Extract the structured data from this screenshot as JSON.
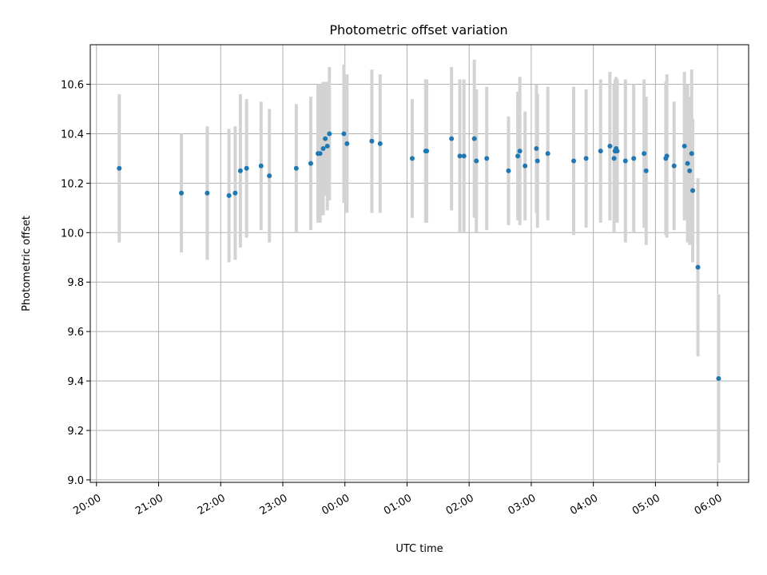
{
  "chart_data": {
    "type": "scatter",
    "title": "Photometric offset variation",
    "xlabel": "UTC time",
    "ylabel": "Photometric offset",
    "x_is_time": true,
    "xlim": [
      "20:00",
      "06:30"
    ],
    "xlim_hours": [
      -0.1,
      10.5
    ],
    "ylim": [
      8.99,
      10.76
    ],
    "grid": true,
    "colors": {
      "point": "#1f77b4",
      "errorbar": "#d3d3d3",
      "grid": "#b0b0b0"
    },
    "x_ticks": [
      "20:00",
      "21:00",
      "22:00",
      "23:00",
      "00:00",
      "01:00",
      "02:00",
      "03:00",
      "04:00",
      "05:00",
      "06:00"
    ],
    "y_ticks": [
      "9.0",
      "9.2",
      "9.4",
      "9.6",
      "9.8",
      "10.0",
      "10.2",
      "10.4",
      "10.6"
    ],
    "series": [
      {
        "x": [
          "20:22",
          "21:22",
          "21:47",
          "22:08",
          "22:14",
          "22:19",
          "22:25",
          "22:39",
          "22:47",
          "23:13",
          "23:27",
          "23:34",
          "23:36",
          "23:39",
          "23:41",
          "23:43",
          "23:45",
          "23:59",
          "24:02",
          "24:26",
          "24:34",
          "25:05",
          "25:18",
          "25:19",
          "25:43",
          "25:51",
          "25:55",
          "26:05",
          "26:07",
          "26:17",
          "26:38",
          "26:47",
          "26:49",
          "26:54",
          "27:05",
          "27:06",
          "27:16",
          "27:41",
          "27:53",
          "28:07",
          "28:16",
          "28:20",
          "28:21",
          "28:22",
          "28:23",
          "28:31",
          "28:39",
          "28:49",
          "28:51",
          "29:10",
          "29:11",
          "29:18",
          "29:28",
          "29:31",
          "29:33",
          "29:35",
          "29:36",
          "29:41",
          "30:01"
        ],
        "y": [
          10.26,
          10.16,
          10.16,
          10.15,
          10.16,
          10.25,
          10.26,
          10.27,
          10.23,
          10.26,
          10.28,
          10.32,
          10.32,
          10.34,
          10.38,
          10.35,
          10.4,
          10.4,
          10.36,
          10.37,
          10.36,
          10.3,
          10.33,
          10.33,
          10.38,
          10.31,
          10.31,
          10.38,
          10.29,
          10.3,
          10.25,
          10.31,
          10.33,
          10.27,
          10.34,
          10.29,
          10.32,
          10.29,
          10.3,
          10.33,
          10.35,
          10.3,
          10.33,
          10.34,
          10.33,
          10.29,
          10.3,
          10.32,
          10.25,
          10.3,
          10.31,
          10.27,
          10.35,
          10.28,
          10.25,
          10.32,
          10.17,
          9.86,
          9.41
        ],
        "err": [
          0.3,
          0.24,
          0.27,
          0.27,
          0.27,
          0.31,
          0.28,
          0.26,
          0.27,
          0.26,
          0.27,
          0.28,
          0.28,
          0.27,
          0.23,
          0.26,
          0.27,
          0.28,
          0.28,
          0.29,
          0.28,
          0.24,
          0.29,
          0.29,
          0.29,
          0.31,
          0.31,
          0.32,
          0.29,
          0.29,
          0.22,
          0.26,
          0.3,
          0.22,
          0.26,
          0.27,
          0.27,
          0.3,
          0.28,
          0.29,
          0.3,
          0.3,
          0.29,
          0.29,
          0.29,
          0.33,
          0.3,
          0.3,
          0.3,
          0.31,
          0.33,
          0.26,
          0.3,
          0.32,
          0.3,
          0.34,
          0.29,
          0.36,
          0.34
        ]
      }
    ]
  }
}
